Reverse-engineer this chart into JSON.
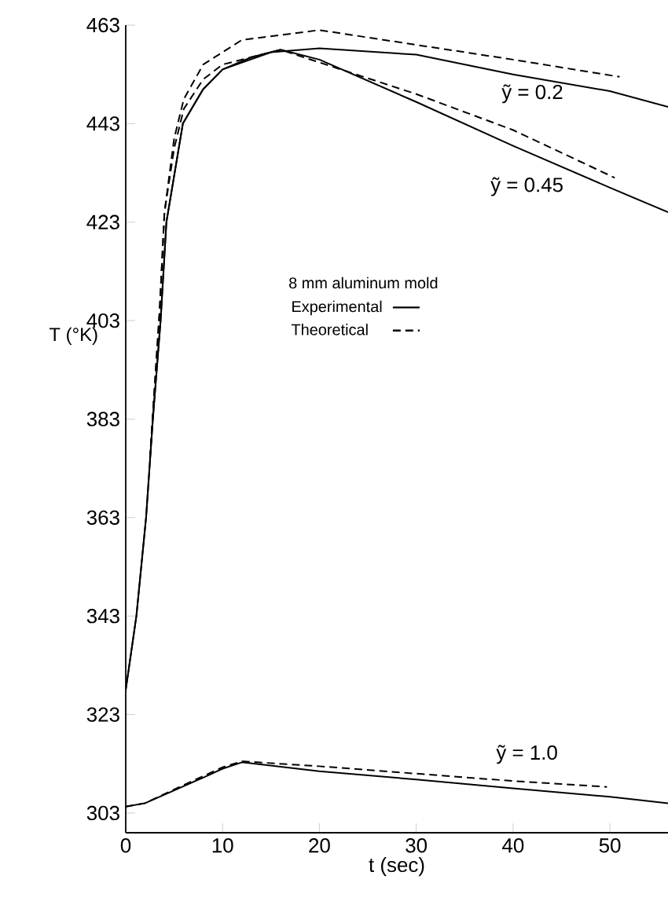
{
  "chart_data": {
    "type": "line",
    "xlabel": "t (sec)",
    "ylabel": "T (°K)",
    "legend_title": "8 mm aluminum mold",
    "xlim": [
      0,
      56
    ],
    "ylim": [
      299,
      463
    ],
    "xticks": [
      0,
      10,
      20,
      30,
      40,
      50
    ],
    "yticks": [
      303,
      323,
      343,
      363,
      383,
      403,
      423,
      443,
      463
    ],
    "grid": false,
    "legend": "center",
    "marker": "none",
    "series": [
      {
        "name": "Experimental",
        "color": "#000000",
        "line_style": "solid",
        "x": [
          0,
          1.1,
          2.1,
          2.8,
          3.6,
          4.2,
          5.9,
          8,
          10,
          15,
          20,
          30,
          40,
          50,
          56
        ],
        "values": [
          328,
          343,
          363,
          383,
          403,
          423,
          443,
          450,
          454,
          457.5,
          458.3,
          457,
          453,
          449.6,
          446.4
        ]
      },
      {
        "name": "Theoretical",
        "color": "#000000",
        "line_style": "dashed",
        "x": [
          2.5,
          3.5,
          4,
          5,
          6,
          8,
          12,
          20,
          30,
          40,
          51
        ],
        "values": [
          375,
          405,
          425,
          440,
          448,
          455,
          460,
          462,
          459,
          456,
          452.5
        ]
      },
      {
        "color": "#000000",
        "line_style": "solid",
        "x": [
          0,
          1.1,
          2.1,
          2.8,
          3.6,
          4.2,
          5.9,
          8,
          10,
          13,
          16,
          20,
          30,
          40,
          50,
          56
        ],
        "values": [
          328,
          343,
          363,
          383,
          403,
          423,
          443,
          450,
          454,
          456.5,
          458,
          456,
          447.4,
          438.5,
          430,
          425
        ]
      },
      {
        "color": "#000000",
        "line_style": "dashed",
        "x": [
          2.5,
          3.5,
          4,
          5,
          6,
          8,
          10,
          16,
          30,
          40,
          50.5
        ],
        "values": [
          375,
          405,
          425,
          438,
          446,
          452,
          455,
          458,
          449,
          441.7,
          432
        ]
      },
      {
        "color": "#000000",
        "line_style": "solid",
        "x": [
          0,
          2,
          5,
          8,
          10,
          12,
          20,
          30,
          40,
          50,
          56
        ],
        "values": [
          304.3,
          305,
          307.6,
          310.2,
          312,
          313.3,
          311.5,
          309.8,
          308,
          306.3,
          305
        ]
      },
      {
        "color": "#000000",
        "line_style": "dashed",
        "x": [
          0,
          2,
          5,
          8,
          10,
          12,
          20,
          30,
          40,
          49.7
        ],
        "values": [
          304.3,
          305,
          307.8,
          310.5,
          312.3,
          313.5,
          312.5,
          311,
          309.5,
          308.3
        ]
      }
    ],
    "annotations": [
      "ỹ = 0.2",
      "ỹ = 0.45",
      "ỹ = 1.0"
    ]
  }
}
